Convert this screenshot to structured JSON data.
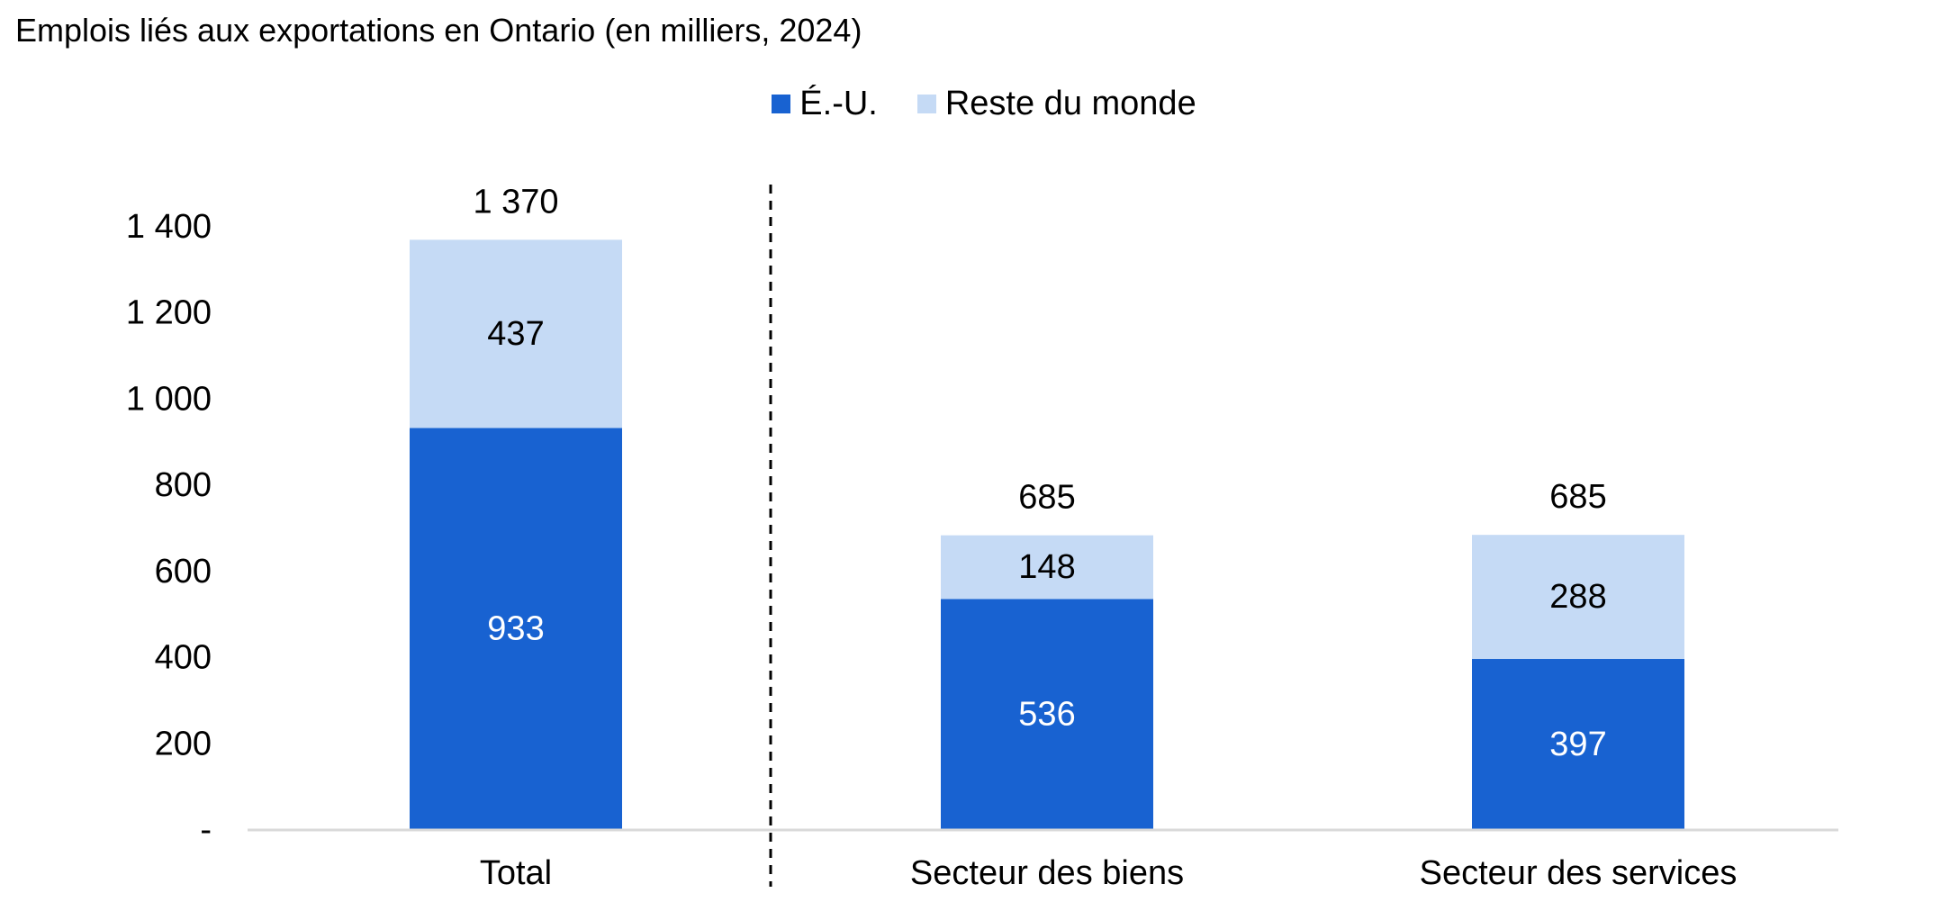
{
  "title": "Emplois liés aux exportations en Ontario (en milliers, 2024)",
  "legend": [
    {
      "label": "É.-U.",
      "color": "#1862D1"
    },
    {
      "label": "Reste du monde",
      "color": "#C5DAF5"
    }
  ],
  "chart_data": {
    "type": "bar",
    "stacked": true,
    "title": "Emplois liés aux exportations en Ontario (en milliers, 2024)",
    "categories": [
      "Total",
      "Secteur des biens",
      "Secteur des services"
    ],
    "series": [
      {
        "name": "É.-U.",
        "values": [
          933,
          536,
          397
        ],
        "color": "#1862D1",
        "label_color": "#ffffff"
      },
      {
        "name": "Reste du monde",
        "values": [
          437,
          148,
          288
        ],
        "color": "#C5DAF5",
        "label_color": "#000000"
      }
    ],
    "total_labels": [
      "1 370",
      "685",
      "685"
    ],
    "value_labels": [
      [
        "933",
        "536",
        "397"
      ],
      [
        "437",
        "148",
        "288"
      ]
    ],
    "ylim": [
      0,
      1400
    ],
    "yticks": [
      0,
      200,
      400,
      600,
      800,
      1000,
      1200,
      1400
    ],
    "ytick_labels": [
      "-",
      "200",
      "400",
      "600",
      "800",
      "1 000",
      "1 200",
      "1 400"
    ],
    "xlabel": "",
    "ylabel": "",
    "grid": false,
    "legend_position": "top",
    "separator": "dashed line between Total and Secteur des biens"
  }
}
